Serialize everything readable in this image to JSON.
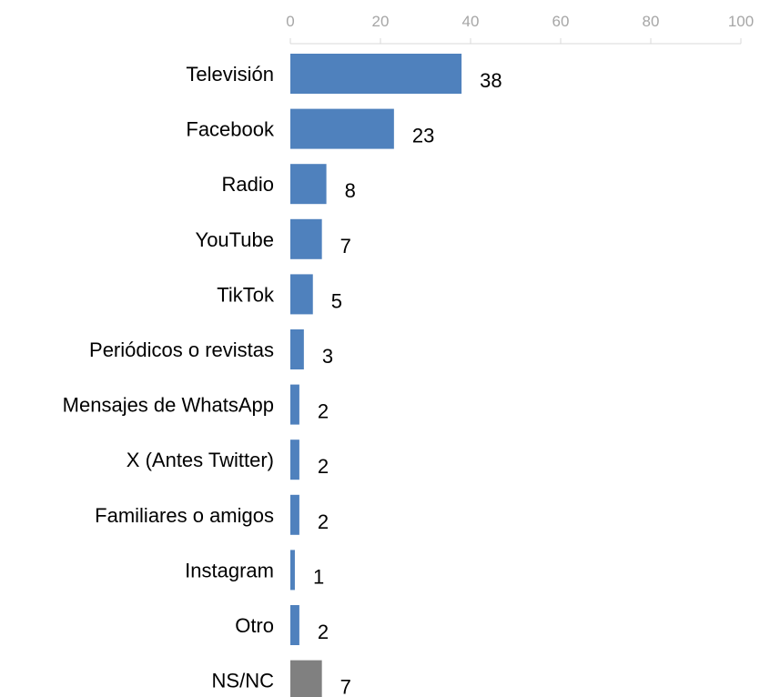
{
  "chart_data": {
    "type": "bar",
    "orientation": "horizontal",
    "categories": [
      "Televisión",
      "Facebook",
      "Radio",
      "YouTube",
      "TikTok",
      "Periódicos o revistas",
      "Mensajes de WhatsApp",
      "X (Antes Twitter)",
      "Familiares o amigos",
      "Instagram",
      "Otro",
      "NS/NC"
    ],
    "values": [
      38,
      23,
      8,
      7,
      5,
      3,
      2,
      2,
      2,
      1,
      2,
      7
    ],
    "bar_colors": [
      "#4f81bd",
      "#4f81bd",
      "#4f81bd",
      "#4f81bd",
      "#4f81bd",
      "#4f81bd",
      "#4f81bd",
      "#4f81bd",
      "#4f81bd",
      "#4f81bd",
      "#4f81bd",
      "#808080"
    ],
    "xlim": [
      0,
      100
    ],
    "xticks": [
      "0",
      "20",
      "40",
      "60",
      "80",
      "100"
    ],
    "x_axis_position": "top",
    "grid": false,
    "title": "",
    "xlabel": "",
    "ylabel": ""
  }
}
